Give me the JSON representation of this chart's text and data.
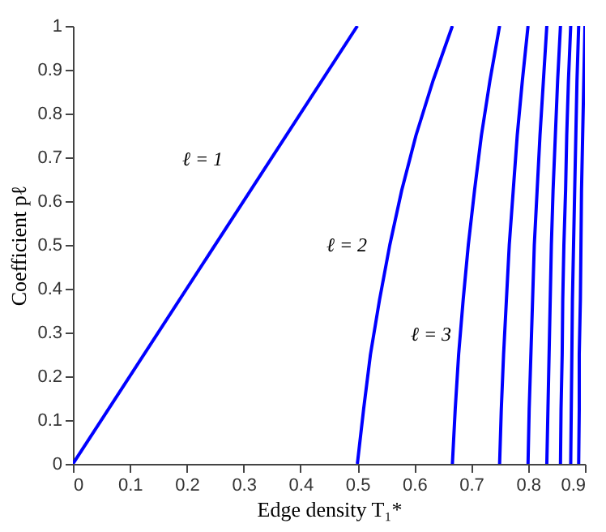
{
  "chart_data": {
    "type": "line",
    "xlabel": "Edge density T₁*",
    "ylabel": "Coefficient pℓ",
    "xlim": [
      0,
      0.9
    ],
    "ylim": [
      0,
      1
    ],
    "xticks": [
      0,
      0.1,
      0.2,
      0.3,
      0.4,
      0.5,
      0.6,
      0.7,
      0.8,
      0.9
    ],
    "yticks": [
      0,
      0.1,
      0.2,
      0.3,
      0.4,
      0.5,
      0.6,
      0.7,
      0.8,
      0.9,
      1
    ],
    "grid": false,
    "marker": "none",
    "line_style": "solid",
    "annotations": [
      "ℓ = 1",
      "ℓ = 2",
      "ℓ = 3"
    ],
    "series": [
      {
        "color": "#0000ff",
        "x": [
          0,
          0.5
        ],
        "values": [
          0,
          1
        ]
      },
      {
        "color": "#0000ff",
        "x": [
          0.5,
          0.511,
          0.523,
          0.539,
          0.557,
          0.578,
          0.603,
          0.633,
          0.667
        ],
        "values": [
          0,
          0.125,
          0.25,
          0.375,
          0.5,
          0.625,
          0.75,
          0.875,
          1
        ]
      },
      {
        "color": "#0000ff",
        "x": [
          0.667,
          0.672,
          0.678,
          0.686,
          0.695,
          0.706,
          0.718,
          0.733,
          0.75
        ],
        "values": [
          0,
          0.125,
          0.25,
          0.375,
          0.5,
          0.625,
          0.75,
          0.875,
          1
        ]
      },
      {
        "color": "#0000ff",
        "x": [
          0.75,
          0.753,
          0.757,
          0.762,
          0.767,
          0.774,
          0.781,
          0.79,
          0.8
        ],
        "values": [
          0,
          0.125,
          0.25,
          0.375,
          0.5,
          0.625,
          0.75,
          0.875,
          1
        ]
      },
      {
        "color": "#0000ff",
        "x": [
          0.8,
          0.802,
          0.805,
          0.808,
          0.811,
          0.816,
          0.821,
          0.827,
          0.833
        ],
        "values": [
          0,
          0.125,
          0.25,
          0.375,
          0.5,
          0.625,
          0.75,
          0.875,
          1
        ]
      },
      {
        "color": "#0000ff",
        "x": [
          0.833,
          0.835,
          0.837,
          0.839,
          0.841,
          0.844,
          0.848,
          0.852,
          0.857
        ],
        "values": [
          0,
          0.125,
          0.25,
          0.375,
          0.5,
          0.625,
          0.75,
          0.875,
          1
        ]
      },
      {
        "color": "#0000ff",
        "x": [
          0.857,
          0.858,
          0.86,
          0.861,
          0.863,
          0.866,
          0.868,
          0.871,
          0.875
        ],
        "values": [
          0,
          0.125,
          0.25,
          0.375,
          0.5,
          0.625,
          0.75,
          0.875,
          1
        ]
      },
      {
        "color": "#0000ff",
        "x": [
          0.875,
          0.876,
          0.877,
          0.878,
          0.88,
          0.882,
          0.884,
          0.886,
          0.889
        ],
        "values": [
          0,
          0.125,
          0.25,
          0.375,
          0.5,
          0.625,
          0.75,
          0.875,
          1
        ]
      },
      {
        "color": "#0000ff",
        "x": [
          0.889,
          0.89,
          0.89,
          0.892,
          0.893,
          0.894,
          0.896,
          0.898,
          0.9
        ],
        "values": [
          0,
          0.125,
          0.25,
          0.375,
          0.5,
          0.625,
          0.75,
          0.875,
          1
        ]
      }
    ]
  }
}
